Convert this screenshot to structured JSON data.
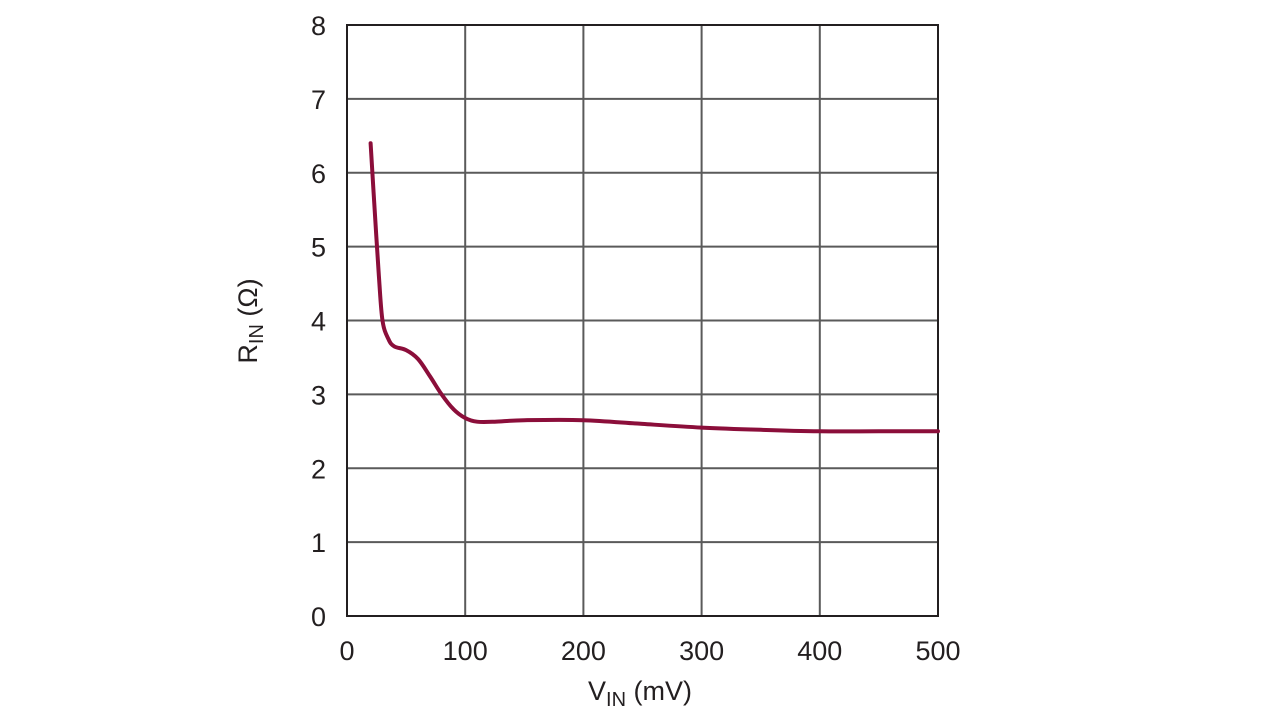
{
  "chart_data": {
    "type": "line",
    "xlabel": {
      "main": "V",
      "sub": "IN",
      "unit": " (mV)"
    },
    "ylabel": {
      "main": "R",
      "sub": "IN",
      "unit": " (Ω)"
    },
    "xlim": [
      0,
      500
    ],
    "ylim": [
      0,
      8
    ],
    "x_ticks": [
      "0",
      "100",
      "200",
      "300",
      "400",
      "500"
    ],
    "y_ticks": [
      "0",
      "1",
      "2",
      "3",
      "4",
      "5",
      "6",
      "7",
      "8"
    ],
    "grid": true,
    "line_color": "#8b0e3a",
    "series": [
      {
        "x": [
          20,
          23,
          27,
          30,
          35,
          40,
          50,
          60,
          70,
          80,
          90,
          100,
          110,
          125,
          150,
          200,
          250,
          300,
          350,
          400,
          450,
          500
        ],
        "y": [
          6.4,
          5.6,
          4.6,
          4.0,
          3.75,
          3.65,
          3.6,
          3.48,
          3.25,
          3.0,
          2.8,
          2.68,
          2.63,
          2.63,
          2.65,
          2.65,
          2.6,
          2.55,
          2.52,
          2.5,
          2.5,
          2.5
        ]
      }
    ]
  }
}
